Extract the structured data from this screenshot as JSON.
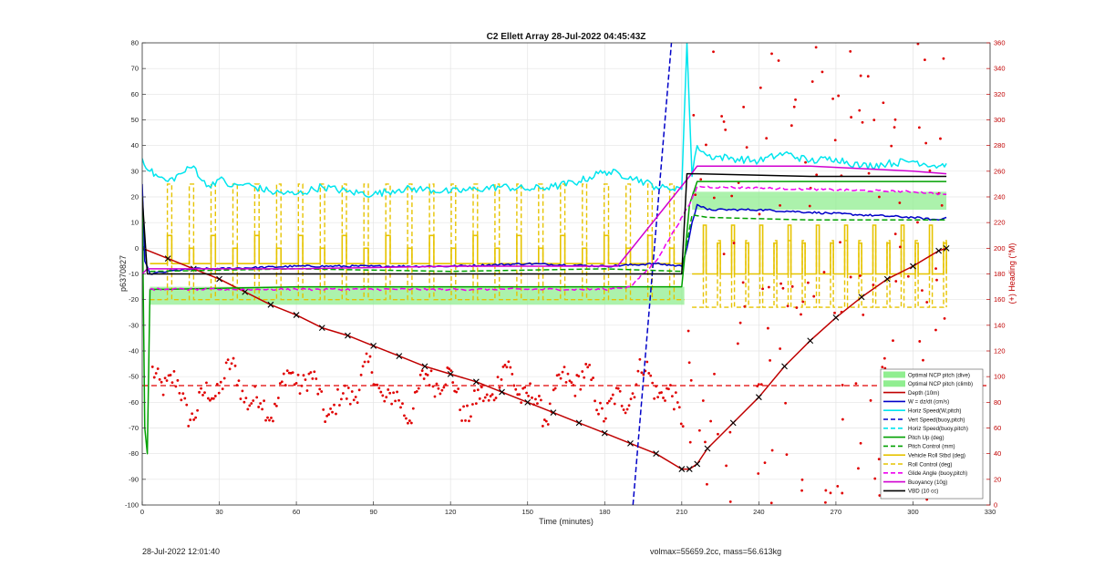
{
  "figure": {
    "footer_left": "28-Jul-2022 12:01:40",
    "footer_right": "volmax=55659.2cc, mass=56.613kg"
  },
  "chart_data": {
    "type": "line",
    "title": "C2 Ellett Array 28-Jul-2022 04:45:43Z",
    "xlabel": "Time (minutes)",
    "ylabel": "p6370827",
    "y2label": "(+) Heading (°M)",
    "xlim": [
      0,
      330
    ],
    "ylim": [
      -100,
      80
    ],
    "y2lim": [
      0,
      360
    ],
    "xticks": [
      0,
      30,
      60,
      90,
      120,
      150,
      180,
      210,
      240,
      270,
      300,
      330
    ],
    "yticks": [
      -100,
      -90,
      -80,
      -70,
      -60,
      -50,
      -40,
      -30,
      -20,
      -10,
      0,
      10,
      20,
      30,
      40,
      50,
      60,
      70,
      80
    ],
    "y2ticks": [
      0,
      20,
      40,
      60,
      80,
      100,
      120,
      140,
      160,
      180,
      200,
      220,
      240,
      260,
      280,
      300,
      320,
      340,
      360
    ],
    "grid": true,
    "legend_position": "bottom-right",
    "colors": {
      "green_band": "#90ee90",
      "depth": "#c00000",
      "vz": "#0000c8",
      "horiz": "#00e5ee",
      "pitch": "#00a000",
      "roll": "#e6c300",
      "glide": "#ee00ee",
      "buoyancy": "#d000d0",
      "vbd": "#000000",
      "heading": "#e00000"
    },
    "legend": [
      {
        "label": "Optimal NCP pitch (dive)",
        "color": "#90ee90",
        "style": "patch"
      },
      {
        "label": "Optimal NCP pitch (climb)",
        "color": "#90ee90",
        "style": "patch"
      },
      {
        "label": "Depth (10m)",
        "color": "#c00000",
        "style": "solid"
      },
      {
        "label": "W = dz/dt (cm/s)",
        "color": "#0000c8",
        "style": "solid"
      },
      {
        "label": "Horiz Speed(W,pitch)",
        "color": "#00e5ee",
        "style": "solid"
      },
      {
        "label": "Vert Speed(buoy,pitch)",
        "color": "#0000c8",
        "style": "dash"
      },
      {
        "label": "Horiz Speed(buoy,pitch)",
        "color": "#00e5ee",
        "style": "dash"
      },
      {
        "label": "Pitch Up (deg)",
        "color": "#00a000",
        "style": "solid"
      },
      {
        "label": "Pitch Control (mm)",
        "color": "#00a000",
        "style": "dash"
      },
      {
        "label": "Vehicle Roll Stbd (deg)",
        "color": "#e6c300",
        "style": "solid"
      },
      {
        "label": "Roll Control (deg)",
        "color": "#e6c300",
        "style": "dash"
      },
      {
        "label": "Glide Angle (buoy,pitch)",
        "color": "#ee00ee",
        "style": "dash"
      },
      {
        "label": "Buoyancy (10g)",
        "color": "#d000d0",
        "style": "solid"
      },
      {
        "label": "VBD (10 cc)",
        "color": "#000000",
        "style": "solid"
      }
    ],
    "series": [
      {
        "name": "Depth (10m)",
        "axis": "left",
        "color": "#c00000",
        "style": "solid",
        "markers": true,
        "x": [
          0,
          10,
          20,
          30,
          40,
          50,
          60,
          70,
          80,
          90,
          100,
          110,
          120,
          130,
          140,
          150,
          160,
          170,
          180,
          190,
          200,
          210,
          213,
          216,
          220,
          230,
          240,
          250,
          260,
          270,
          280,
          290,
          300,
          310,
          313
        ],
        "y": [
          0,
          -4,
          -8,
          -12,
          -17,
          -22,
          -26,
          -31,
          -34,
          -38,
          -42,
          -46,
          -49,
          -52,
          -56,
          -60,
          -64,
          -68,
          -72,
          -76,
          -80,
          -86,
          -86,
          -84,
          -78,
          -68,
          -58,
          -46,
          -36,
          -27,
          -19,
          -12,
          -7,
          -1,
          0
        ]
      },
      {
        "name": "W = dz/dt (cm/s)",
        "axis": "left",
        "color": "#0000c8",
        "style": "solid",
        "x": [
          0,
          1,
          3,
          10,
          20,
          30,
          60,
          90,
          120,
          150,
          180,
          200,
          210,
          212,
          214,
          216,
          220,
          240,
          260,
          280,
          300,
          310,
          313
        ],
        "y": [
          25,
          -5,
          -10,
          -9,
          -8,
          -8,
          -7,
          -7,
          -7,
          -6,
          -7,
          -6,
          -7,
          0,
          10,
          17,
          15,
          15,
          14,
          13,
          12,
          11,
          12
        ]
      },
      {
        "name": "Horiz Speed(W,pitch)",
        "axis": "left",
        "color": "#00e5ee",
        "style": "solid",
        "x": [
          0,
          3,
          6,
          10,
          15,
          20,
          25,
          30,
          35,
          40,
          50,
          60,
          70,
          80,
          90,
          100,
          110,
          120,
          130,
          140,
          150,
          160,
          170,
          180,
          190,
          200,
          205,
          208,
          210,
          212,
          214,
          216,
          220,
          230,
          240,
          250,
          260,
          270,
          280,
          290,
          300,
          310,
          313
        ],
        "y": [
          35,
          30,
          28,
          26,
          29,
          32,
          24,
          27,
          24,
          25,
          22,
          21,
          24,
          22,
          21,
          23,
          23,
          22,
          23,
          24,
          23,
          24,
          26,
          30,
          28,
          24,
          23,
          24,
          23,
          80,
          28,
          40,
          36,
          35,
          34,
          37,
          34,
          35,
          32,
          33,
          34,
          32,
          33
        ]
      },
      {
        "name": "Vert Speed(buoy,pitch)",
        "axis": "left",
        "color": "#0000c8",
        "style": "dash",
        "x": [
          191,
          206
        ],
        "y": [
          -100,
          80
        ]
      },
      {
        "name": "Pitch Up (deg)",
        "axis": "left",
        "color": "#00a000",
        "style": "solid",
        "x": [
          0,
          1,
          2,
          3,
          10,
          60,
          120,
          180,
          200,
          210,
          211,
          213,
          216,
          220,
          260,
          300,
          313
        ],
        "y": [
          20,
          -70,
          -80,
          -16,
          -16,
          -15,
          -15,
          -15,
          -15,
          -15,
          -5,
          17,
          26,
          26,
          26,
          26,
          26
        ]
      },
      {
        "name": "Pitch Control (mm)",
        "axis": "left",
        "color": "#00a000",
        "style": "dash",
        "x": [
          3,
          60,
          120,
          180,
          210,
          214,
          220,
          260,
          300,
          313
        ],
        "y": [
          -9,
          -8,
          -9,
          -8,
          -9,
          13,
          12,
          11,
          11,
          11
        ]
      },
      {
        "name": "Glide Angle (buoy,pitch)",
        "axis": "left",
        "color": "#ee00ee",
        "style": "dash",
        "x": [
          3,
          60,
          120,
          180,
          190,
          200,
          213,
          216,
          260,
          300,
          313
        ],
        "y": [
          -16,
          -16,
          -16,
          -16,
          -15,
          -5,
          17,
          24,
          23,
          22,
          21
        ]
      },
      {
        "name": "Buoyancy (10g)",
        "axis": "left",
        "color": "#d000d0",
        "style": "solid",
        "x": [
          0,
          2,
          5,
          60,
          120,
          160,
          185,
          213,
          216,
          260,
          300,
          313
        ],
        "y": [
          -10,
          -8,
          -8,
          -8,
          -7,
          -7,
          -7,
          28,
          32,
          32,
          30,
          29
        ]
      },
      {
        "name": "VBD (10 cc)",
        "axis": "left",
        "color": "#000000",
        "style": "solid",
        "x": [
          0,
          2,
          5,
          60,
          120,
          180,
          210,
          212,
          216,
          260,
          300,
          313
        ],
        "y": [
          20,
          -10,
          -10,
          -10,
          -10,
          -10,
          -10,
          29,
          29,
          28,
          28,
          28
        ]
      }
    ],
    "roll_series": {
      "name": "Vehicle Roll Stbd (deg)",
      "axis": "left",
      "color": "#e6c300",
      "segment1": {
        "x_start": 3,
        "x_end": 211,
        "period": 8.5,
        "low": -6,
        "high": 0,
        "spike_high": 5
      },
      "segment2": {
        "x_start": 214,
        "x_end": 313,
        "period": 5.5,
        "low": -10,
        "high": 2,
        "spike_high": 9
      }
    },
    "roll_control": {
      "name": "Roll Control (deg)",
      "axis": "left",
      "color": "#e6c300",
      "segment1": {
        "x_start": 3,
        "x_end": 211,
        "period": 8.5,
        "low": -20,
        "high": 25
      },
      "segment2": {
        "x_start": 214,
        "x_end": 313,
        "period": 5.5,
        "low": -23,
        "high": 3
      }
    },
    "green_band": {
      "dive": {
        "x_start": 3,
        "x_end": 211,
        "y_low": -22,
        "y_high": -15
      },
      "climb": {
        "x_start": 214,
        "x_end": 313,
        "y_low": 15,
        "y_high": 22
      }
    },
    "reference_line": {
      "axis": "left",
      "y": -53.5,
      "color": "#e00000",
      "style": "dash"
    },
    "heading_scatter": {
      "name": "(+) Heading (°M)",
      "axis": "right",
      "color": "#e00000",
      "segment1": {
        "x_start": 4,
        "x_end": 211,
        "center": 88,
        "amplitude": 22
      },
      "segment2": {
        "x_start": 212,
        "x_end": 313,
        "y_min": 0,
        "y_max": 360
      }
    }
  }
}
